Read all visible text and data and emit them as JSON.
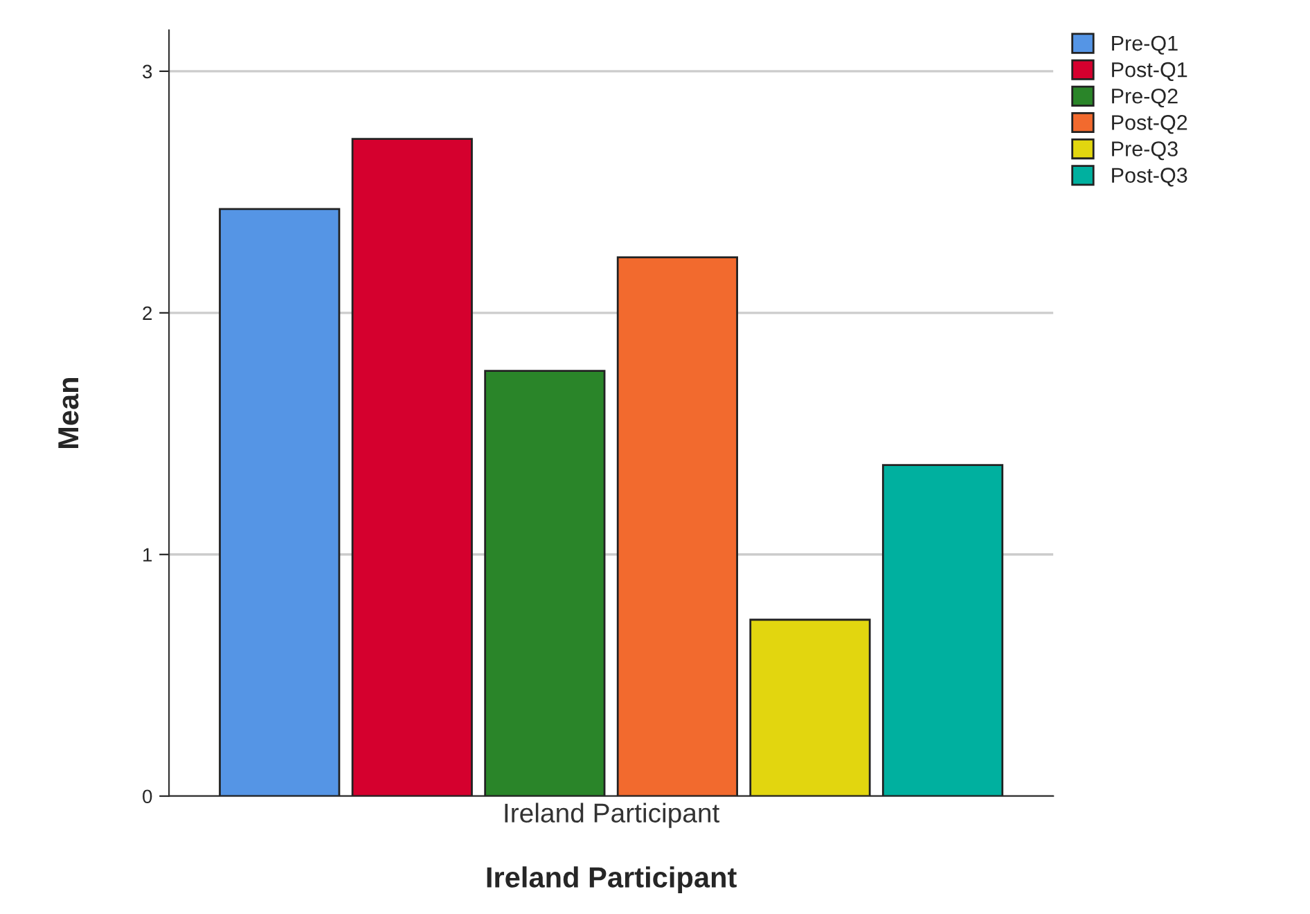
{
  "chart_data": {
    "type": "bar",
    "xlabel": "Ireland Participant",
    "ylabel": "Mean",
    "categories": [
      "Ireland Participant"
    ],
    "series": [
      {
        "name": "Pre-Q1",
        "color": "#5595e5",
        "values": [
          2.43
        ]
      },
      {
        "name": "Post-Q1",
        "color": "#d5002e",
        "values": [
          2.72
        ]
      },
      {
        "name": "Pre-Q2",
        "color": "#2a8529",
        "values": [
          1.76
        ]
      },
      {
        "name": "Post-Q2",
        "color": "#f26a2e",
        "values": [
          2.23
        ]
      },
      {
        "name": "Pre-Q3",
        "color": "#e2d60f",
        "values": [
          0.73
        ]
      },
      {
        "name": "Post-Q3",
        "color": "#00b09f",
        "values": [
          1.37
        ]
      }
    ],
    "ylim": [
      0,
      3.17
    ],
    "yticks": [
      0,
      1,
      2,
      3
    ],
    "grid": "y",
    "legend": "top right"
  }
}
